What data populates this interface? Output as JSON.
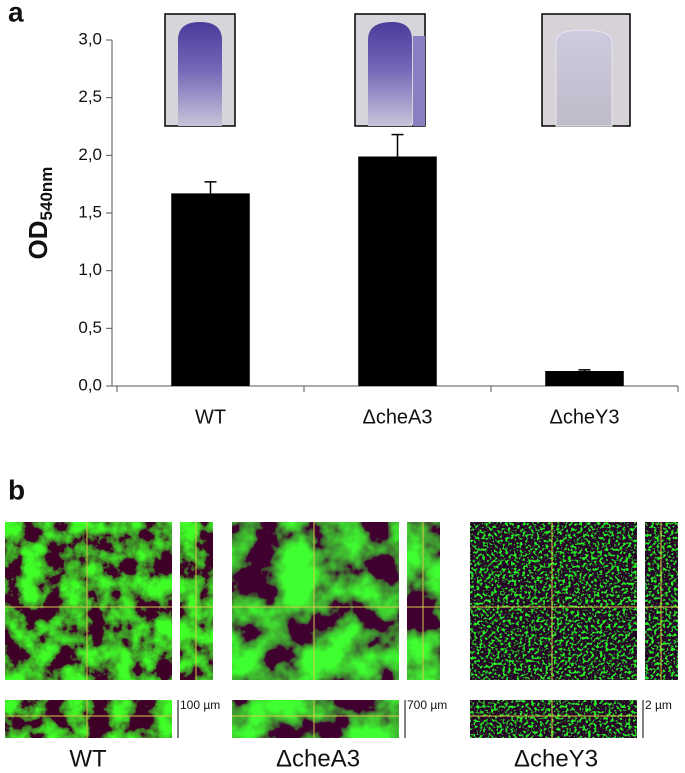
{
  "chart_data": {
    "type": "bar",
    "panel_label": "a",
    "y_label": "OD",
    "y_label_subscript": "540nm",
    "categories": [
      "WT",
      "ΔcheA3",
      "ΔcheY3"
    ],
    "values": [
      1.67,
      1.99,
      0.13
    ],
    "errors": [
      0.1,
      0.19,
      0.01
    ],
    "color": "#000000",
    "ylim": [
      0,
      3.0
    ],
    "yticks": [
      {
        "value": 0,
        "label": "0,0"
      },
      {
        "value": 0.5,
        "label": "0,5"
      },
      {
        "value": 1.0,
        "label": "1,0"
      },
      {
        "value": 1.5,
        "label": "1,5"
      },
      {
        "value": 2.0,
        "label": "2,0"
      },
      {
        "value": 2.5,
        "label": "2,5"
      },
      {
        "value": 3.0,
        "label": "3,0"
      }
    ],
    "grid": false
  },
  "panel_b": {
    "panel_label": "b",
    "images": [
      {
        "caption": "WT",
        "scale_bar": "100 µm"
      },
      {
        "caption": "ΔcheA3",
        "scale_bar": "700 µm"
      },
      {
        "caption": "ΔcheY3",
        "scale_bar": "2 µm"
      }
    ]
  }
}
